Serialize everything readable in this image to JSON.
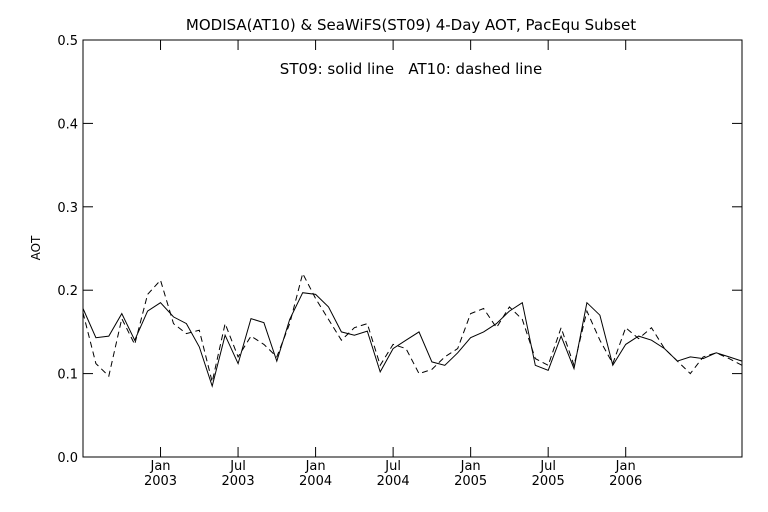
{
  "chart_data": {
    "type": "line",
    "title": "MODISA(AT10) & SeaWiFS(ST09) 4-Day AOT, PacEqu Subset",
    "annotation": "ST09: solid line   AT10: dashed line",
    "xlabel": "",
    "ylabel": "AOT",
    "ylim": [
      0.0,
      0.5
    ],
    "xlim": [
      "2002-07",
      "2006-10"
    ],
    "yticks": [
      "0.0",
      "0.1",
      "0.2",
      "0.3",
      "0.4",
      "0.5"
    ],
    "xticks": [
      {
        "date": "2003-01",
        "month": "Jan",
        "year": "2003"
      },
      {
        "date": "2003-07",
        "month": "Jul",
        "year": "2003"
      },
      {
        "date": "2004-01",
        "month": "Jan",
        "year": "2004"
      },
      {
        "date": "2004-07",
        "month": "Jul",
        "year": "2004"
      },
      {
        "date": "2005-01",
        "month": "Jan",
        "year": "2005"
      },
      {
        "date": "2005-07",
        "month": "Jul",
        "year": "2005"
      },
      {
        "date": "2006-01",
        "month": "Jan",
        "year": "2006"
      }
    ],
    "x": [
      "2002-07",
      "2002-08",
      "2002-09",
      "2002-10",
      "2002-11",
      "2002-12",
      "2003-01",
      "2003-02",
      "2003-03",
      "2003-04",
      "2003-05",
      "2003-06",
      "2003-07",
      "2003-08",
      "2003-09",
      "2003-10",
      "2003-11",
      "2003-12",
      "2004-01",
      "2004-02",
      "2004-03",
      "2004-04",
      "2004-05",
      "2004-06",
      "2004-07",
      "2004-08",
      "2004-09",
      "2004-10",
      "2004-11",
      "2004-12",
      "2005-01",
      "2005-02",
      "2005-03",
      "2005-04",
      "2005-05",
      "2005-06",
      "2005-07",
      "2005-08",
      "2005-09",
      "2005-10",
      "2005-11",
      "2005-12",
      "2006-01",
      "2006-02",
      "2006-03",
      "2006-04",
      "2006-05",
      "2006-06",
      "2006-07",
      "2006-08",
      "2006-09",
      "2006-10"
    ],
    "series": [
      {
        "name": "ST09",
        "style": "solid",
        "color": "#000000",
        "values": [
          0.178,
          0.143,
          0.145,
          0.172,
          0.14,
          0.175,
          0.185,
          0.168,
          0.16,
          0.132,
          0.085,
          0.146,
          0.112,
          0.166,
          0.161,
          0.115,
          0.165,
          0.197,
          0.195,
          0.18,
          0.15,
          0.146,
          0.151,
          0.102,
          0.13,
          0.14,
          0.15,
          0.114,
          0.11,
          0.125,
          0.143,
          0.15,
          0.16,
          0.175,
          0.185,
          0.11,
          0.104,
          0.145,
          0.106,
          0.185,
          0.17,
          0.11,
          0.135,
          0.145,
          0.14,
          0.13,
          0.115,
          0.12,
          0.118,
          0.125,
          0.12,
          0.115
        ]
      },
      {
        "name": "AT10",
        "style": "dashed",
        "color": "#000000",
        "values": [
          0.173,
          0.112,
          0.097,
          0.166,
          0.135,
          0.195,
          0.212,
          0.16,
          0.148,
          0.152,
          0.09,
          0.16,
          0.12,
          0.145,
          0.135,
          0.12,
          0.16,
          0.22,
          0.19,
          0.165,
          0.14,
          0.155,
          0.16,
          0.11,
          0.135,
          0.13,
          0.1,
          0.105,
          0.12,
          0.13,
          0.172,
          0.178,
          0.155,
          0.18,
          0.165,
          0.118,
          0.11,
          0.155,
          0.11,
          0.175,
          0.14,
          0.112,
          0.155,
          0.142,
          0.155,
          0.13,
          0.115,
          0.1,
          0.12,
          0.125,
          0.118,
          0.11
        ]
      }
    ],
    "grid": false,
    "legend": "none"
  }
}
